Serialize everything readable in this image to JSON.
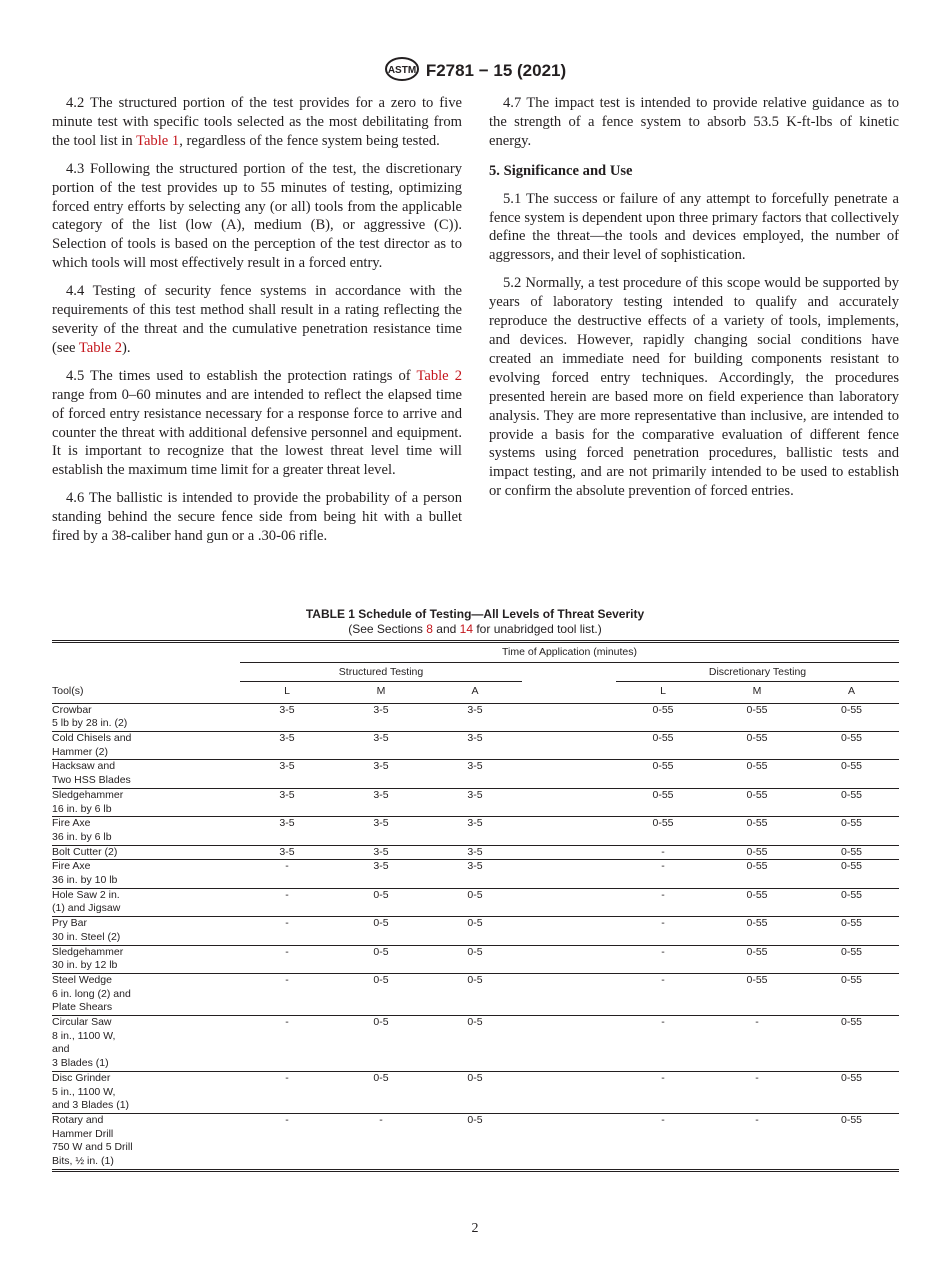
{
  "header": {
    "designation": "F2781 − 15 (2021)",
    "logo": "astm-logo"
  },
  "left": {
    "p42": [
      "4.2 The structured portion of the test provides for a zero to five minute test with specific tools selected as the most debilitating from the tool list in ",
      "Table 1",
      ", regardless of the fence system being tested."
    ],
    "p43": "4.3 Following the structured portion of the test, the discretionary portion of the test provides up to 55 minutes of testing, optimizing forced entry efforts by selecting any (or all) tools from the applicable category of the list (low (A), medium (B), or aggressive (C)). Selection of tools is based on the perception of the test director as to which tools will most effectively result in a forced entry.",
    "p44": [
      "4.4 Testing of security fence systems in accordance with the requirements of this test method shall result in a rating reflecting the severity of the threat and the cumulative penetration resistance time (see ",
      "Table 2",
      ")."
    ],
    "p45": [
      "4.5 The times used to establish the protection ratings of ",
      "Table 2",
      " range from 0–60 minutes and are intended to reflect the elapsed time of forced entry resistance necessary for a response force to arrive and counter the threat with additional defensive personnel and equipment. It is important to recognize that the lowest threat level time will establish the maximum time limit for a greater threat level."
    ],
    "p46": "4.6 The ballistic is intended to provide the probability of a person standing behind the secure fence side from being hit with a bullet fired by a 38-caliber hand gun or a .30-06 rifle."
  },
  "right": {
    "p47": "4.7 The impact test is intended to provide relative guidance as to the strength of a fence system to absorb 53.5 K-ft-lbs of kinetic energy.",
    "h5": "5. Significance and Use",
    "p51": "5.1 The success or failure of any attempt to forcefully penetrate a fence system is dependent upon three primary factors that collectively define the threat—the tools and devices employed, the number of aggressors, and their level of sophistication.",
    "p52": "5.2 Normally, a test procedure of this scope would be supported by years of laboratory testing intended to qualify and accurately reproduce the destructive effects of a variety of tools, implements, and devices. However, rapidly changing social conditions have created an immediate need for building components resistant to evolving forced entry techniques. Accordingly, the procedures presented herein are based more on field experience than laboratory analysis. They are more representative than inclusive, are intended to provide a basis for the comparative evaluation of different fence systems using forced penetration procedures, ballistic tests and impact testing, and are not primarily intended to be used to establish or confirm the absolute prevention of forced entries."
  },
  "table": {
    "title": "TABLE 1 Schedule of Testing—All Levels of Threat Severity",
    "subtitle": [
      "(See Sections ",
      "8",
      " and ",
      "14",
      " for unabridged tool list.)"
    ],
    "span_header": "Time of Application (minutes)",
    "structured": "Structured Testing",
    "discretionary": "Discretionary Testing",
    "tool_header": "Tool(s)",
    "levels": [
      "L",
      "M",
      "A",
      "L",
      "M",
      "A"
    ],
    "rows": [
      {
        "tool": [
          "Crowbar",
          "5 lb by 28 in. (2)"
        ],
        "v": [
          "3-5",
          "3-5",
          "3-5",
          "0-55",
          "0-55",
          "0-55"
        ]
      },
      {
        "tool": [
          "Cold Chisels and",
          "Hammer (2)"
        ],
        "v": [
          "3-5",
          "3-5",
          "3-5",
          "0-55",
          "0-55",
          "0-55"
        ]
      },
      {
        "tool": [
          "Hacksaw and",
          "Two HSS Blades"
        ],
        "v": [
          "3-5",
          "3-5",
          "3-5",
          "0-55",
          "0-55",
          "0-55"
        ]
      },
      {
        "tool": [
          "Sledgehammer",
          "16 in. by 6 lb"
        ],
        "v": [
          "3-5",
          "3-5",
          "3-5",
          "0-55",
          "0-55",
          "0-55"
        ]
      },
      {
        "tool": [
          "Fire Axe",
          "36 in. by 6 lb"
        ],
        "v": [
          "3-5",
          "3-5",
          "3-5",
          "0-55",
          "0-55",
          "0-55"
        ]
      },
      {
        "tool": [
          "Bolt Cutter (2)"
        ],
        "v": [
          "3-5",
          "3-5",
          "3-5",
          "-",
          "0-55",
          "0-55"
        ]
      },
      {
        "tool": [
          "Fire Axe",
          "36 in. by 10 lb"
        ],
        "v": [
          "-",
          "3-5",
          "3-5",
          "-",
          "0-55",
          "0-55"
        ]
      },
      {
        "tool": [
          "Hole Saw 2 in.",
          "(1) and Jigsaw"
        ],
        "v": [
          "-",
          "0-5",
          "0-5",
          "-",
          "0-55",
          "0-55"
        ]
      },
      {
        "tool": [
          "Pry Bar",
          "30 in. Steel (2)"
        ],
        "v": [
          "-",
          "0-5",
          "0-5",
          "-",
          "0-55",
          "0-55"
        ]
      },
      {
        "tool": [
          "Sledgehammer",
          "30 in. by 12 lb"
        ],
        "v": [
          "-",
          "0-5",
          "0-5",
          "-",
          "0-55",
          "0-55"
        ]
      },
      {
        "tool": [
          "Steel Wedge",
          "6 in. long (2) and",
          "Plate Shears"
        ],
        "v": [
          "-",
          "0-5",
          "0-5",
          "-",
          "0-55",
          "0-55"
        ]
      },
      {
        "tool": [
          "Circular Saw",
          "8 in., 1100 W,",
          "and",
          "3 Blades (1)"
        ],
        "v": [
          "-",
          "0-5",
          "0-5",
          "-",
          "-",
          "0-55"
        ]
      },
      {
        "tool": [
          "Disc Grinder",
          "5 in., 1100 W,",
          "and 3 Blades (1)"
        ],
        "v": [
          "-",
          "0-5",
          "0-5",
          "-",
          "-",
          "0-55"
        ]
      },
      {
        "tool": [
          "Rotary and",
          "Hammer Drill",
          "750 W and 5 Drill",
          "Bits, ½ in. (1)"
        ],
        "v": [
          "-",
          "-",
          "0-5",
          "-",
          "-",
          "0-55"
        ]
      }
    ]
  },
  "page_number": "2",
  "colors": {
    "link": "#c4161c",
    "text": "#231f20"
  }
}
